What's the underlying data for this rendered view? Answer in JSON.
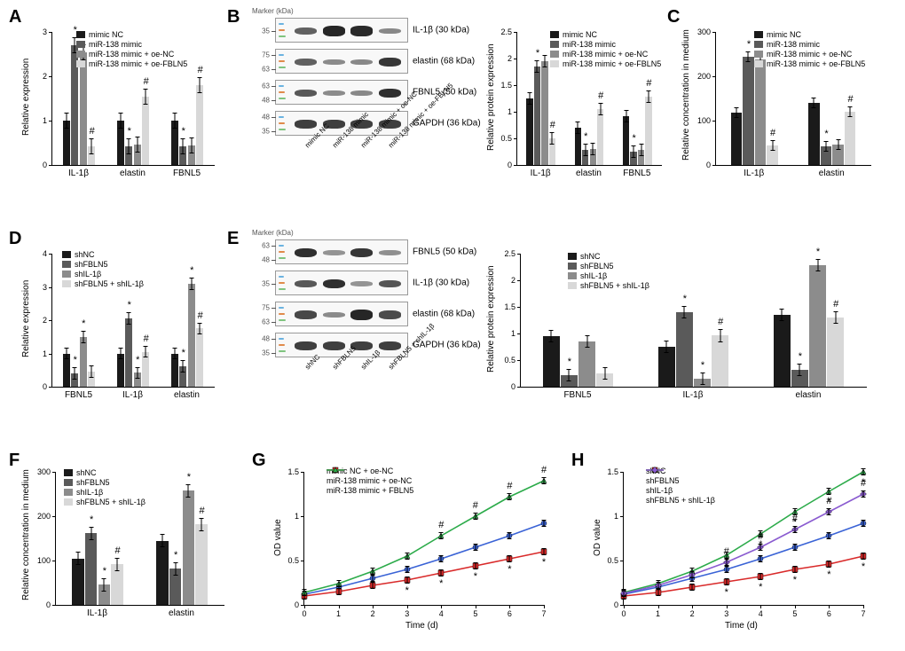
{
  "labels": {
    "A": "A",
    "B": "B",
    "C": "C",
    "D": "D",
    "E": "E",
    "F": "F",
    "G": "G",
    "H": "H"
  },
  "colors": {
    "bar4": [
      "#1a1a1a",
      "#5a5a5a",
      "#8c8c8c",
      "#d8d8d8"
    ],
    "line_blue": "#3a63d6",
    "line_red": "#d92a2a",
    "line_green": "#2cab4a",
    "line_purple": "#8a5bd0",
    "grid": "#000000"
  },
  "legendsA": [
    "mimic NC",
    "miR-138 mimic",
    "miR-138 mimic + oe-NC",
    "miR-138 mimic + oe-FBLN5"
  ],
  "legendsD": [
    "shNC",
    "shFBLN5",
    "shIL-1β",
    "shFBLN5 + shIL-1β"
  ],
  "panelA": {
    "ylabel": "Relative expression",
    "ylim": [
      0,
      3
    ],
    "yticks": [
      0,
      1,
      2,
      3
    ],
    "groups": [
      "IL-1β",
      "elastin",
      "FBNL5"
    ],
    "values": [
      [
        1.0,
        2.7,
        2.55,
        0.42
      ],
      [
        1.0,
        0.43,
        0.46,
        1.55
      ],
      [
        1.0,
        0.42,
        0.45,
        1.8
      ]
    ],
    "err": 0.18,
    "sig": [
      [
        null,
        "*",
        null,
        "#"
      ],
      [
        null,
        "*",
        null,
        "#"
      ],
      [
        null,
        "*",
        null,
        "#"
      ]
    ]
  },
  "panelB_blots": {
    "markerTitle": "Marker (kDa)",
    "rows": [
      {
        "name": "IL-1β (30 kDa)",
        "m": [
          "35"
        ],
        "bands": [
          0.55,
          0.9,
          0.88,
          0.32
        ]
      },
      {
        "name": "elastin (68 kDa)",
        "m": [
          "75",
          "63"
        ],
        "bands": [
          0.55,
          0.3,
          0.32,
          0.8
        ]
      },
      {
        "name": "FBNL5 (50 kDa)",
        "m": [
          "63",
          "48"
        ],
        "bands": [
          0.6,
          0.3,
          0.32,
          0.85
        ]
      },
      {
        "name": "GAPDH (36 kDa)",
        "m": [
          "48",
          "35"
        ],
        "bands": [
          0.75,
          0.75,
          0.75,
          0.75
        ]
      }
    ],
    "lanes": [
      "mimic NC",
      "miR-138 mimic",
      "miR-138 mimic + oe-NC",
      "miR-138 mimic + oe-FBLN5"
    ]
  },
  "panelB_bar": {
    "ylabel": "Relative protein expression",
    "ylim": [
      0,
      2.5
    ],
    "yticks": [
      0,
      0.5,
      1.0,
      1.5,
      2.0,
      2.5
    ],
    "groups": [
      "IL-1β",
      "elastin",
      "FBNL5"
    ],
    "values": [
      [
        1.25,
        1.85,
        1.95,
        0.5
      ],
      [
        0.7,
        0.28,
        0.3,
        1.05
      ],
      [
        0.92,
        0.25,
        0.28,
        1.28
      ]
    ],
    "err": 0.12,
    "sig": [
      [
        null,
        "*",
        null,
        "#"
      ],
      [
        null,
        "*",
        null,
        "#"
      ],
      [
        null,
        "*",
        null,
        "#"
      ]
    ]
  },
  "panelC": {
    "ylabel": "Relative concentration in medium",
    "ylim": [
      0,
      300
    ],
    "yticks": [
      0,
      100,
      200,
      300
    ],
    "groups": [
      "IL-1β",
      "elastin"
    ],
    "values": [
      [
        118,
        245,
        238,
        45
      ],
      [
        140,
        42,
        46,
        120
      ]
    ],
    "err": 12,
    "sig": [
      [
        null,
        "*",
        null,
        "#"
      ],
      [
        null,
        "*",
        null,
        "#"
      ]
    ]
  },
  "panelD": {
    "ylabel": "Relative expression",
    "ylim": [
      0,
      4
    ],
    "yticks": [
      0,
      1,
      2,
      3,
      4
    ],
    "groups": [
      "FBNL5",
      "IL-1β",
      "elastin"
    ],
    "values": [
      [
        1.0,
        0.4,
        1.5,
        0.45
      ],
      [
        1.0,
        2.05,
        0.42,
        1.05
      ],
      [
        1.0,
        0.62,
        3.1,
        1.75
      ]
    ],
    "err": 0.18,
    "sig": [
      [
        null,
        "*",
        "*",
        null
      ],
      [
        null,
        "*",
        "*",
        "#"
      ],
      [
        null,
        "*",
        "*",
        "#"
      ]
    ]
  },
  "panelE_blots": {
    "markerTitle": "Marker (kDa)",
    "rows": [
      {
        "name": "FBNL5 (50 kDa)",
        "m": [
          "63",
          "48"
        ],
        "bands": [
          0.85,
          0.25,
          0.8,
          0.28
        ]
      },
      {
        "name": "IL-1β (30 kDa)",
        "m": [
          "35"
        ],
        "bands": [
          0.6,
          0.85,
          0.25,
          0.62
        ]
      },
      {
        "name": "elastin (68 kDa)",
        "m": [
          "75",
          "63"
        ],
        "bands": [
          0.7,
          0.3,
          0.9,
          0.68
        ]
      },
      {
        "name": "GAPDH (36 kDa)",
        "m": [
          "48",
          "35"
        ],
        "bands": [
          0.75,
          0.75,
          0.75,
          0.75
        ]
      }
    ],
    "lanes": [
      "shNC",
      "shFBLN5",
      "shIL-1β",
      "shFBLN5 + shIL-1β"
    ]
  },
  "panelE_bar": {
    "ylabel": "Relative protein expression",
    "ylim": [
      0,
      2.5
    ],
    "yticks": [
      0,
      0.5,
      1.0,
      1.5,
      2.0,
      2.5
    ],
    "groups": [
      "FBNL5",
      "IL-1β",
      "elastin"
    ],
    "values": [
      [
        0.95,
        0.22,
        0.85,
        0.25
      ],
      [
        0.75,
        1.4,
        0.15,
        0.96
      ],
      [
        1.35,
        0.32,
        2.28,
        1.3
      ]
    ],
    "err": 0.12,
    "sig": [
      [
        null,
        "*",
        null,
        null
      ],
      [
        null,
        "*",
        "*",
        "#"
      ],
      [
        null,
        "*",
        "*",
        "#"
      ]
    ]
  },
  "panelF": {
    "ylabel": "Relative concentration in medium",
    "ylim": [
      0,
      300
    ],
    "yticks": [
      0,
      100,
      200,
      300
    ],
    "groups": [
      "IL-1β",
      "elastin"
    ],
    "values": [
      [
        105,
        162,
        46,
        92
      ],
      [
        145,
        82,
        258,
        182
      ]
    ],
    "err": 15,
    "sig": [
      [
        null,
        "*",
        "*",
        "#"
      ],
      [
        null,
        "*",
        "*",
        "#"
      ]
    ]
  },
  "panelG": {
    "ylabel": "OD value",
    "xlabel": "Time (d)",
    "ylim": [
      0,
      1.5
    ],
    "yticks": [
      0,
      0.5,
      1.0,
      1.5
    ],
    "x": [
      0,
      1,
      2,
      3,
      4,
      5,
      6,
      7
    ],
    "series": [
      {
        "name": "mimic NC + oe-NC",
        "color": "#3a63d6",
        "marker": "circle",
        "y": [
          0.12,
          0.2,
          0.3,
          0.4,
          0.52,
          0.65,
          0.78,
          0.92
        ]
      },
      {
        "name": "miR-138 mimic + oe-NC",
        "color": "#d92a2a",
        "marker": "square",
        "y": [
          0.1,
          0.15,
          0.22,
          0.28,
          0.36,
          0.44,
          0.52,
          0.6
        ],
        "sig": [
          "",
          "",
          "",
          "*",
          "*",
          "*",
          "*",
          "*"
        ]
      },
      {
        "name": "miR-138 mimic + FBLN5",
        "color": "#2cab4a",
        "marker": "triangle",
        "y": [
          0.14,
          0.24,
          0.38,
          0.55,
          0.78,
          1.0,
          1.22,
          1.4
        ],
        "sig": [
          "",
          "",
          "",
          "",
          "#",
          "#",
          "#",
          "#"
        ]
      }
    ]
  },
  "panelH": {
    "ylabel": "OD value",
    "xlabel": "Time (d)",
    "ylim": [
      0,
      1.5
    ],
    "yticks": [
      0,
      0.5,
      1.0,
      1.5
    ],
    "x": [
      0,
      1,
      2,
      3,
      4,
      5,
      6,
      7
    ],
    "series": [
      {
        "name": "shNC",
        "color": "#3a63d6",
        "marker": "circle",
        "y": [
          0.12,
          0.2,
          0.3,
          0.4,
          0.52,
          0.65,
          0.78,
          0.92
        ]
      },
      {
        "name": "shFBLN5",
        "color": "#d92a2a",
        "marker": "square",
        "y": [
          0.1,
          0.14,
          0.2,
          0.26,
          0.32,
          0.4,
          0.46,
          0.55
        ],
        "sig": [
          "",
          "",
          "",
          "*",
          "*",
          "*",
          "*",
          "*"
        ]
      },
      {
        "name": "shIL-1β",
        "color": "#2cab4a",
        "marker": "triangle",
        "y": [
          0.14,
          0.24,
          0.38,
          0.56,
          0.8,
          1.05,
          1.28,
          1.5
        ],
        "sig": [
          "",
          "",
          "",
          "*",
          "*",
          "*",
          "*",
          "*"
        ]
      },
      {
        "name": "shFBLN5 + shIL-1β",
        "color": "#8a5bd0",
        "marker": "diamond",
        "y": [
          0.13,
          0.22,
          0.34,
          0.48,
          0.65,
          0.85,
          1.05,
          1.25
        ],
        "sig": [
          "",
          "",
          "",
          "#",
          "#",
          "#",
          "#",
          "#"
        ]
      }
    ]
  }
}
